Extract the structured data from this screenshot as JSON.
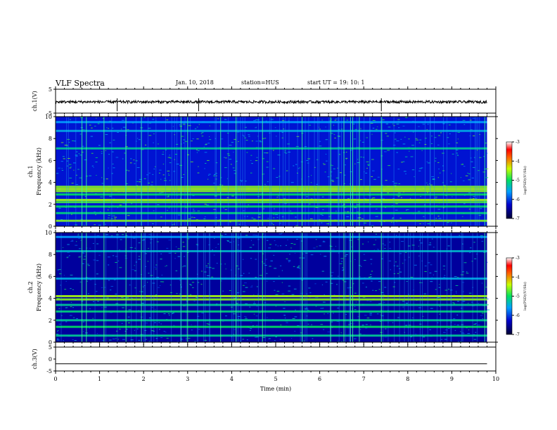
{
  "header": {
    "title": "VLF Spectra",
    "date": "Jan. 10, 2018",
    "station": "station=HUS",
    "start": "start  UT =   19: 10: 1"
  },
  "chart_data": [
    {
      "type": "line",
      "panel": "ch.1 waveform",
      "ylabel": "ch.1(V)",
      "ylim": [
        -5,
        5
      ],
      "yticks": [
        "5",
        "-5"
      ],
      "xlim": [
        0,
        10
      ],
      "description_values": {
        "baseline_v": -0.3,
        "end_time_min": 9.8
      },
      "spikes_min": [
        1.4,
        3.25,
        7.4
      ]
    },
    {
      "type": "heatmap",
      "panel": "ch.1 spectrogram",
      "ylabel_top": "ch.1",
      "ylabel": "Frequency  (kHz)",
      "ylim": [
        0,
        10
      ],
      "yticks": [
        "0",
        "2",
        "4",
        "6",
        "8",
        "10"
      ],
      "xlim": [
        0,
        10
      ],
      "data_end_min": 9.8,
      "colorbar": {
        "label": "log(PSD)(V²/Hz)",
        "range": [
          -7,
          -3
        ],
        "ticks": [
          "-3",
          "-4",
          "-5",
          "-6",
          "-7"
        ]
      },
      "bands_khz": [
        {
          "f": 0.5,
          "level": -4.6
        },
        {
          "f": 1.2,
          "level": -5.1
        },
        {
          "f": 1.8,
          "level": -5.0
        },
        {
          "f": 2.2,
          "level": -4.8
        },
        {
          "f": 2.4,
          "level": -4.5
        },
        {
          "f": 2.9,
          "level": -5.0
        },
        {
          "f": 3.2,
          "level": -4.6
        },
        {
          "f": 3.4,
          "level": -4.5
        },
        {
          "f": 3.6,
          "level": -4.6
        },
        {
          "f": 7.1,
          "level": -5.2
        },
        {
          "f": 8.7,
          "level": -5.5
        },
        {
          "f": 9.5,
          "level": -5.6
        }
      ],
      "background_level": -6.2,
      "sferic_times_min": [
        0.6,
        0.7,
        1.1,
        1.6,
        1.95,
        2.85,
        3.0,
        3.75,
        4.1,
        4.7,
        5.6,
        6.25,
        6.55,
        6.7,
        6.75,
        6.9,
        7.4,
        9.75
      ]
    },
    {
      "type": "heatmap",
      "panel": "ch.2 spectrogram",
      "ylabel_top": "ch.2",
      "ylabel": "Frequency  (kHz)",
      "ylim": [
        0,
        10
      ],
      "yticks": [
        "0",
        "2",
        "4",
        "6",
        "8",
        "10"
      ],
      "xlim": [
        0,
        10
      ],
      "data_end_min": 9.8,
      "colorbar": {
        "label": "log(PSD)(V²/Hz)",
        "range": [
          -7,
          -3
        ],
        "ticks": [
          "-3",
          "-4",
          "-5",
          "-6",
          "-7"
        ]
      },
      "bands_khz": [
        {
          "f": 0.6,
          "level": -5.2
        },
        {
          "f": 1.4,
          "level": -5.0
        },
        {
          "f": 2.0,
          "level": -5.2
        },
        {
          "f": 2.8,
          "level": -5.1
        },
        {
          "f": 3.4,
          "level": -5.2
        },
        {
          "f": 3.9,
          "level": -4.6
        },
        {
          "f": 4.2,
          "level": -4.5
        },
        {
          "f": 5.8,
          "level": -5.5
        },
        {
          "f": 8.3,
          "level": -5.4
        },
        {
          "f": 9.6,
          "level": -5.6
        }
      ],
      "background_level": -6.5,
      "sferic_times_min": [
        0.6,
        0.7,
        1.1,
        1.6,
        1.95,
        2.85,
        3.0,
        3.75,
        4.1,
        4.7,
        5.6,
        6.25,
        6.55,
        6.7,
        6.75,
        6.9,
        7.4,
        9.75
      ]
    },
    {
      "type": "line",
      "panel": "ch.3 waveform",
      "ylabel": "ch.3(V)",
      "ylim": [
        -5,
        5
      ],
      "yticks": [
        "5",
        "0",
        "-5"
      ],
      "xlim": [
        0,
        10
      ],
      "description_values": {
        "baseline_v": -2.0,
        "end_time_min": 9.8
      },
      "xlabel": "Time  (min)",
      "xticks": [
        "0",
        "1",
        "2",
        "3",
        "4",
        "5",
        "6",
        "7",
        "8",
        "9",
        "10"
      ]
    }
  ],
  "colors": {
    "sferic": "#3cff9a",
    "band_hot": "#7cff5a",
    "background": "#06124a",
    "trace": "#000000"
  }
}
